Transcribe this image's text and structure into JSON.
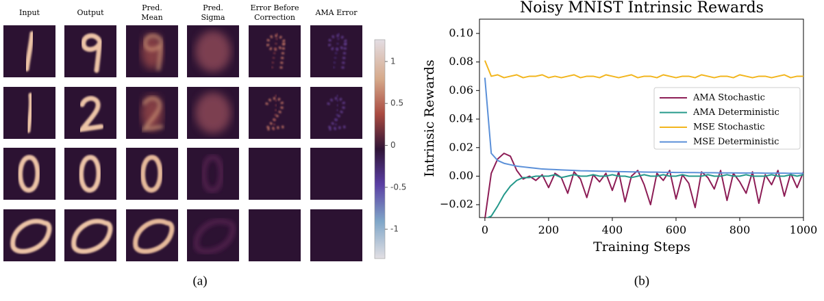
{
  "panel_a": {
    "columns": [
      [
        "Input"
      ],
      [
        "Output"
      ],
      [
        "Pred.",
        "Mean"
      ],
      [
        "Pred.",
        "Sigma"
      ],
      [
        "Error Before",
        "Correction"
      ],
      [
        "AMA Error"
      ]
    ],
    "colorbar": {
      "lim": [
        -1.35,
        1.26
      ],
      "ticks": [
        1,
        0.5,
        0,
        -0.5,
        -1
      ]
    },
    "caption": "(a)"
  },
  "chart_data": {
    "type": "line",
    "title": "Noisy MNIST Intrinsic Rewards",
    "xlabel": "Training Steps",
    "ylabel": "Intrinsic Rewards",
    "caption": "(b)",
    "legend": "right",
    "xlim": [
      -17,
      1000
    ],
    "ylim": [
      -0.029,
      0.11
    ],
    "xticks": [
      0,
      200,
      400,
      600,
      800,
      1000
    ],
    "yticks": [
      {
        "value": -0.02,
        "label": "−0.02"
      },
      {
        "value": 0,
        "label": "0.00"
      },
      {
        "value": 0.02,
        "label": "0.02"
      },
      {
        "value": 0.04,
        "label": "0.04"
      },
      {
        "value": 0.06,
        "label": "0.06"
      },
      {
        "value": 0.08,
        "label": "0.08"
      },
      {
        "value": 0.1,
        "label": "0.10"
      }
    ],
    "x": [
      0,
      20,
      40,
      60,
      80,
      100,
      120,
      140,
      160,
      180,
      200,
      220,
      240,
      260,
      280,
      300,
      320,
      340,
      360,
      380,
      400,
      420,
      440,
      460,
      480,
      500,
      520,
      540,
      560,
      580,
      600,
      620,
      640,
      660,
      680,
      700,
      720,
      740,
      760,
      780,
      800,
      820,
      840,
      860,
      880,
      900,
      920,
      940,
      960,
      980,
      1000
    ],
    "series": [
      {
        "name": "AMA Stochastic",
        "color": "#8c1c55",
        "values": [
          -0.03,
          0.002,
          0.012,
          0.016,
          0.014,
          0.004,
          -0.002,
          0.0,
          -0.003,
          0.001,
          -0.008,
          0.002,
          -0.001,
          -0.012,
          0.003,
          -0.002,
          -0.015,
          0.001,
          -0.004,
          0.002,
          -0.01,
          0.003,
          -0.018,
          0.0,
          0.004,
          -0.006,
          -0.02,
          0.002,
          -0.003,
          0.004,
          -0.016,
          0.001,
          -0.005,
          -0.022,
          0.003,
          -0.001,
          -0.009,
          0.004,
          -0.017,
          0.002,
          -0.004,
          -0.012,
          0.003,
          -0.019,
          0.001,
          -0.006,
          0.004,
          -0.014,
          0.002,
          -0.008,
          0.003
        ]
      },
      {
        "name": "AMA Deterministic",
        "color": "#23988a",
        "values": [
          -0.03,
          -0.028,
          -0.021,
          -0.013,
          -0.007,
          -0.003,
          -0.001,
          -0.001,
          0.0,
          0.0,
          0.0,
          0.001,
          -0.001,
          0.0,
          0.001,
          0.0,
          0.0,
          0.001,
          0.0,
          0.0,
          0.001,
          0.0,
          0.0,
          -0.001,
          0.0,
          0.001,
          0.0,
          0.0,
          0.001,
          0.0,
          0.0,
          0.001,
          0.0,
          0.0,
          0.0,
          0.001,
          0.0,
          0.0,
          0.001,
          0.0,
          0.0,
          0.001,
          0.0,
          0.0,
          0.0,
          0.001,
          0.0,
          0.0,
          0.001,
          0.0,
          0.001
        ]
      },
      {
        "name": "MSE Stochastic",
        "color": "#f2b51c",
        "values": [
          0.081,
          0.07,
          0.071,
          0.069,
          0.07,
          0.071,
          0.069,
          0.07,
          0.07,
          0.071,
          0.069,
          0.07,
          0.069,
          0.07,
          0.071,
          0.069,
          0.07,
          0.07,
          0.069,
          0.071,
          0.07,
          0.069,
          0.07,
          0.071,
          0.069,
          0.07,
          0.07,
          0.069,
          0.071,
          0.07,
          0.069,
          0.07,
          0.07,
          0.069,
          0.071,
          0.07,
          0.069,
          0.07,
          0.07,
          0.069,
          0.071,
          0.07,
          0.069,
          0.07,
          0.07,
          0.069,
          0.07,
          0.071,
          0.069,
          0.07,
          0.07
        ]
      },
      {
        "name": "MSE Deterministic",
        "color": "#5a8fd8",
        "values": [
          0.069,
          0.016,
          0.011,
          0.009,
          0.008,
          0.007,
          0.0065,
          0.006,
          0.0055,
          0.005,
          0.0048,
          0.0046,
          0.0044,
          0.0042,
          0.004,
          0.0038,
          0.0037,
          0.0036,
          0.0035,
          0.0034,
          0.0033,
          0.0032,
          0.0031,
          0.003,
          0.003,
          0.0029,
          0.0028,
          0.0028,
          0.0027,
          0.0027,
          0.0026,
          0.0026,
          0.0025,
          0.0025,
          0.0024,
          0.0024,
          0.0024,
          0.0023,
          0.0023,
          0.0023,
          0.0022,
          0.0022,
          0.0022,
          0.0022,
          0.0021,
          0.0021,
          0.0021,
          0.0021,
          0.002,
          0.002,
          0.002
        ]
      }
    ]
  }
}
